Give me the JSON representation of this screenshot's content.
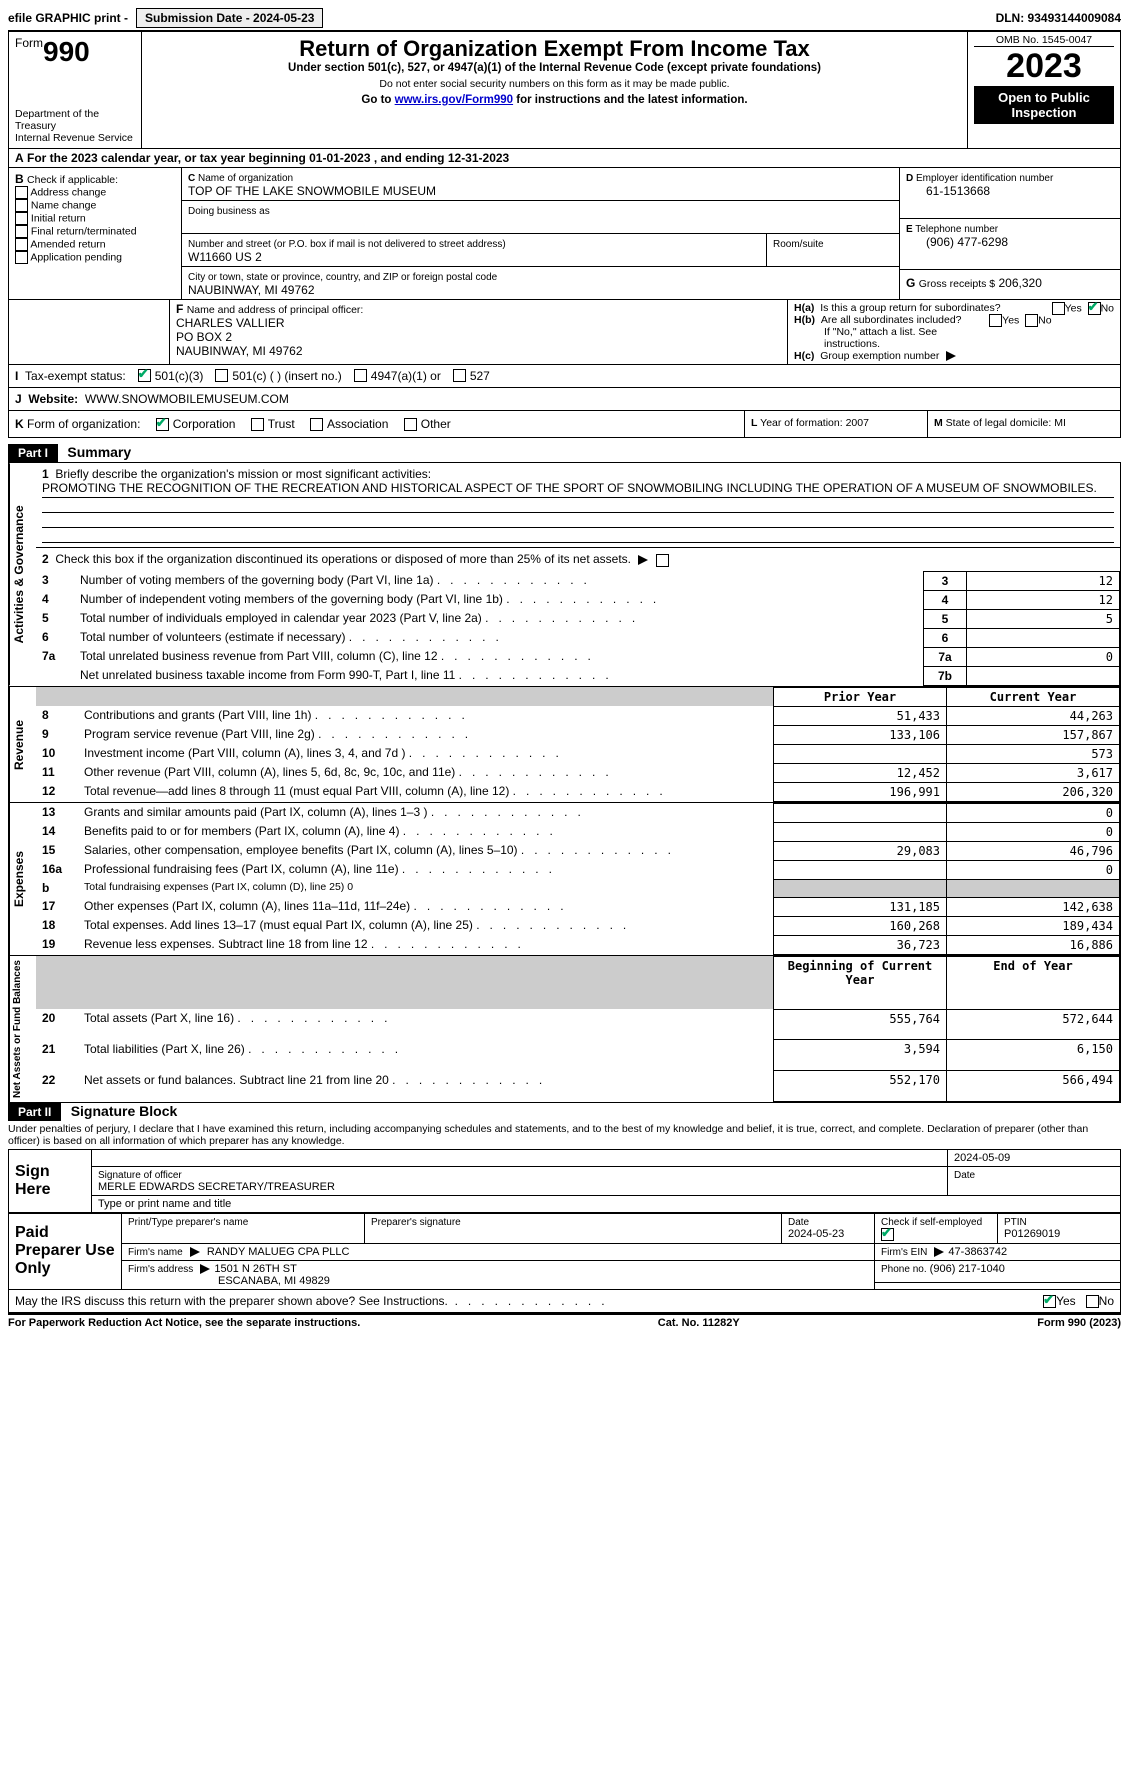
{
  "topbar": {
    "efile": "efile GRAPHIC print -",
    "submission_label": "Submission Date - 2024-05-23",
    "dln_label": "DLN: 93493144009084"
  },
  "header": {
    "form_word": "Form",
    "form_num": "990",
    "dept": "Department of the Treasury\nInternal Revenue Service",
    "title": "Return of Organization Exempt From Income Tax",
    "sub1": "Under section 501(c), 527, or 4947(a)(1) of the Internal Revenue Code (except private foundations)",
    "sub2": "Do not enter social security numbers on this form as it may be made public.",
    "sub3_pre": "Go to ",
    "sub3_link": "www.irs.gov/Form990",
    "sub3_post": " for instructions and the latest information.",
    "omb": "OMB No. 1545-0047",
    "year": "2023",
    "open": "Open to Public Inspection"
  },
  "A": {
    "line": "For the 2023 calendar year, or tax year beginning 01-01-2023    , and ending 12-31-2023"
  },
  "B": {
    "label": "Check if applicable:",
    "opts": [
      "Address change",
      "Name change",
      "Initial return",
      "Final return/terminated",
      "Amended return",
      "Application pending"
    ]
  },
  "C": {
    "name_label": "Name of organization",
    "name": "TOP OF THE LAKE SNOWMOBILE MUSEUM",
    "dba_label": "Doing business as",
    "street_label": "Number and street (or P.O. box if mail is not delivered to street address)",
    "street": "W11660 US 2",
    "room_label": "Room/suite",
    "city_label": "City or town, state or province, country, and ZIP or foreign postal code",
    "city": "NAUBINWAY, MI  49762"
  },
  "D": {
    "label": "Employer identification number",
    "val": "61-1513668"
  },
  "E": {
    "label": "Telephone number",
    "val": "(906) 477-6298"
  },
  "G": {
    "label": "Gross receipts $",
    "val": "206,320"
  },
  "F": {
    "label": "Name and address of principal officer:",
    "lines": [
      "CHARLES VALLIER",
      "PO BOX 2",
      "NAUBINWAY, MI  49762"
    ]
  },
  "H": {
    "a": "Is this a group return for subordinates?",
    "b": "Are all subordinates included?",
    "b_note": "If \"No,\" attach a list. See instructions.",
    "c": "Group exemption number",
    "yes": "Yes",
    "no": "No"
  },
  "I": {
    "label": "Tax-exempt status:",
    "opts": [
      "501(c)(3)",
      "501(c) (  ) (insert no.)",
      "4947(a)(1) or",
      "527"
    ]
  },
  "J": {
    "label": "Website:",
    "val": "WWW.SNOWMOBILEMUSEUM.COM"
  },
  "K": {
    "label": "Form of organization:",
    "opts": [
      "Corporation",
      "Trust",
      "Association",
      "Other"
    ]
  },
  "L": {
    "label": "Year of formation:",
    "val": "2007"
  },
  "M": {
    "label": "State of legal domicile:",
    "val": "MI"
  },
  "part1": {
    "bar": "Part I",
    "title": "Summary",
    "groups": {
      "ag": "Activities & Governance",
      "rev": "Revenue",
      "exp": "Expenses",
      "net": "Net Assets or Fund Balances"
    },
    "l1_label": "Briefly describe the organization's mission or most significant activities:",
    "l1_text": "PROMOTING THE RECOGNITION OF THE RECREATION AND HISTORICAL ASPECT OF THE SPORT OF SNOWMOBILING INCLUDING THE OPERATION OF A MUSEUM OF SNOWMOBILES.",
    "l2": "Check this box      if the organization discontinued its operations or disposed of more than 25% of its net assets.",
    "simple_lines": [
      {
        "n": "3",
        "t": "Number of voting members of the governing body (Part VI, line 1a)",
        "box": "3",
        "v": "12"
      },
      {
        "n": "4",
        "t": "Number of independent voting members of the governing body (Part VI, line 1b)",
        "box": "4",
        "v": "12"
      },
      {
        "n": "5",
        "t": "Total number of individuals employed in calendar year 2023 (Part V, line 2a)",
        "box": "5",
        "v": "5"
      },
      {
        "n": "6",
        "t": "Total number of volunteers (estimate if necessary)",
        "box": "6",
        "v": ""
      },
      {
        "n": "7a",
        "t": "Total unrelated business revenue from Part VIII, column (C), line 12",
        "box": "7a",
        "v": "0"
      },
      {
        "n": "",
        "t": "Net unrelated business taxable income from Form 990-T, Part I, line 11",
        "box": "7b",
        "v": ""
      }
    ],
    "col_prior": "Prior Year",
    "col_current": "Current Year",
    "col_begin": "Beginning of Current Year",
    "col_end": "End of Year",
    "rev_lines": [
      {
        "n": "8",
        "t": "Contributions and grants (Part VIII, line 1h)",
        "p": "51,433",
        "c": "44,263"
      },
      {
        "n": "9",
        "t": "Program service revenue (Part VIII, line 2g)",
        "p": "133,106",
        "c": "157,867"
      },
      {
        "n": "10",
        "t": "Investment income (Part VIII, column (A), lines 3, 4, and 7d )",
        "p": "",
        "c": "573"
      },
      {
        "n": "11",
        "t": "Other revenue (Part VIII, column (A), lines 5, 6d, 8c, 9c, 10c, and 11e)",
        "p": "12,452",
        "c": "3,617"
      },
      {
        "n": "12",
        "t": "Total revenue—add lines 8 through 11 (must equal Part VIII, column (A), line 12)",
        "p": "196,991",
        "c": "206,320"
      }
    ],
    "exp_lines": [
      {
        "n": "13",
        "t": "Grants and similar amounts paid (Part IX, column (A), lines 1–3 )",
        "p": "",
        "c": "0"
      },
      {
        "n": "14",
        "t": "Benefits paid to or for members (Part IX, column (A), line 4)",
        "p": "",
        "c": "0"
      },
      {
        "n": "15",
        "t": "Salaries, other compensation, employee benefits (Part IX, column (A), lines 5–10)",
        "p": "29,083",
        "c": "46,796"
      },
      {
        "n": "16a",
        "t": "Professional fundraising fees (Part IX, column (A), line 11e)",
        "p": "",
        "c": "0"
      },
      {
        "n": "b",
        "t": "Total fundraising expenses (Part IX, column (D), line 25) 0",
        "grey": true
      },
      {
        "n": "17",
        "t": "Other expenses (Part IX, column (A), lines 11a–11d, 11f–24e)",
        "p": "131,185",
        "c": "142,638"
      },
      {
        "n": "18",
        "t": "Total expenses. Add lines 13–17 (must equal Part IX, column (A), line 25)",
        "p": "160,268",
        "c": "189,434"
      },
      {
        "n": "19",
        "t": "Revenue less expenses. Subtract line 18 from line 12",
        "p": "36,723",
        "c": "16,886"
      }
    ],
    "net_lines": [
      {
        "n": "20",
        "t": "Total assets (Part X, line 16)",
        "p": "555,764",
        "c": "572,644"
      },
      {
        "n": "21",
        "t": "Total liabilities (Part X, line 26)",
        "p": "3,594",
        "c": "6,150"
      },
      {
        "n": "22",
        "t": "Net assets or fund balances. Subtract line 21 from line 20",
        "p": "552,170",
        "c": "566,494"
      }
    ]
  },
  "part2": {
    "bar": "Part II",
    "title": "Signature Block",
    "decl": "Under penalties of perjury, I declare that I have examined this return, including accompanying schedules and statements, and to the best of my knowledge and belief, it is true, correct, and complete. Declaration of preparer (other than officer) is based on all information of which preparer has any knowledge.",
    "sign_here": "Sign Here",
    "sig_officer": "Signature of officer",
    "sig_name": "MERLE EDWARDS  SECRETARY/TREASURER",
    "sig_type": "Type or print name and title",
    "sig_date": "2024-05-09",
    "date_lbl": "Date",
    "paid": "Paid Preparer Use Only",
    "prep_name_lbl": "Print/Type preparer's name",
    "prep_sig_lbl": "Preparer's signature",
    "prep_date": "2024-05-23",
    "check_lbl": "Check         if self-employed",
    "ptin_lbl": "PTIN",
    "ptin": "P01269019",
    "firm_name_lbl": "Firm's name",
    "firm_name": "RANDY MALUEG CPA PLLC",
    "firm_ein_lbl": "Firm's EIN",
    "firm_ein": "47-3863742",
    "firm_addr_lbl": "Firm's address",
    "firm_addr1": "1501 N 26TH ST",
    "firm_addr2": "ESCANABA, MI  49829",
    "phone_lbl": "Phone no.",
    "phone": "(906) 217-1040",
    "discuss": "May the IRS discuss this return with the preparer shown above? See Instructions."
  },
  "footer": {
    "left": "For Paperwork Reduction Act Notice, see the separate instructions.",
    "mid": "Cat. No. 11282Y",
    "right": "Form 990 (2023)"
  }
}
